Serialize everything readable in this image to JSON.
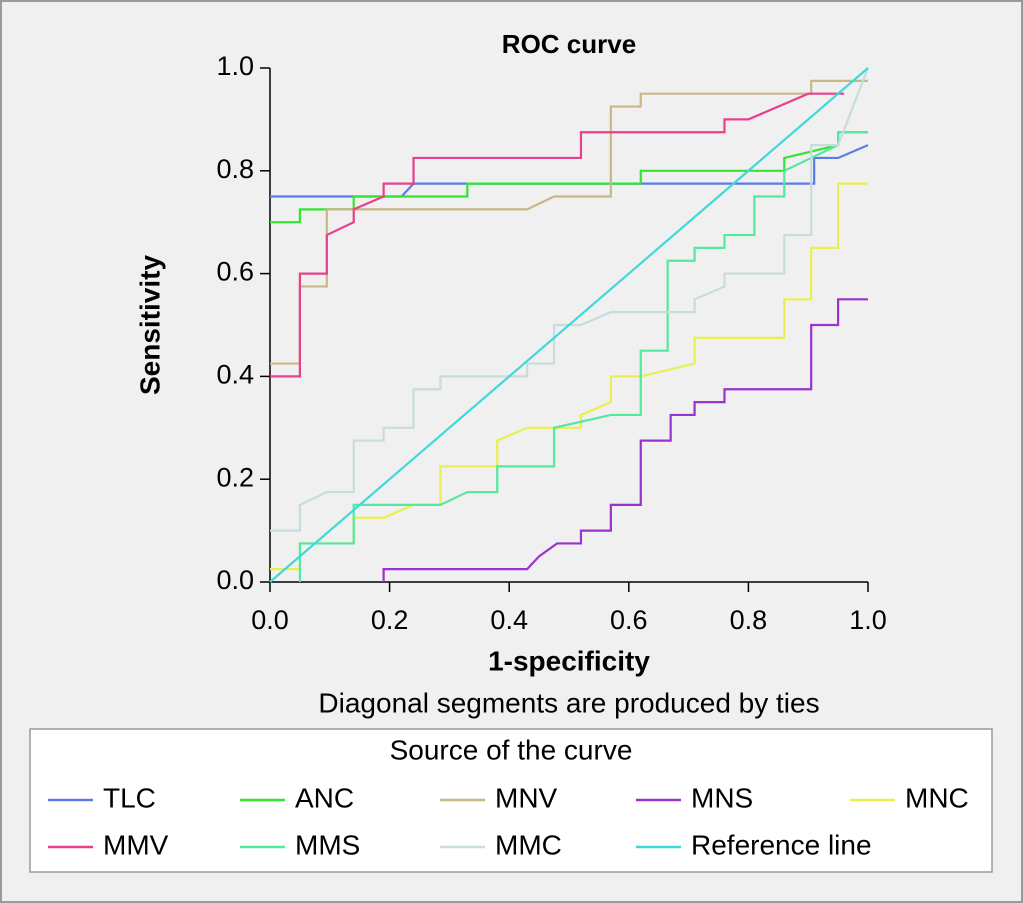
{
  "chart_data": {
    "type": "line",
    "title": "ROC curve",
    "xlabel": "1-specificity",
    "ylabel": "Sensitivity",
    "note": "Diagonal segments are produced by ties",
    "legend_title": "Source of the curve",
    "xlim": [
      0,
      1
    ],
    "ylim": [
      0,
      1
    ],
    "xticks": [
      {
        "value": 0,
        "label": "0.0"
      },
      {
        "value": 0.2,
        "label": "0.2"
      },
      {
        "value": 0.4,
        "label": "0.4"
      },
      {
        "value": 0.6,
        "label": "0.6"
      },
      {
        "value": 0.8,
        "label": "0.8"
      },
      {
        "value": 1,
        "label": "1.0"
      }
    ],
    "yticks": [
      {
        "value": 0,
        "label": "0.0"
      },
      {
        "value": 0.2,
        "label": "0.2"
      },
      {
        "value": 0.4,
        "label": "0.4"
      },
      {
        "value": 0.6,
        "label": "0.6"
      },
      {
        "value": 0.8,
        "label": "0.8"
      },
      {
        "value": 1,
        "label": "1.0"
      }
    ],
    "series": [
      {
        "name": "TLC",
        "color": "#5b7be8",
        "x": [
          0,
          0.22,
          0.24,
          0.91,
          0.91,
          0.95,
          1
        ],
        "values": [
          0.75,
          0.75,
          0.775,
          0.775,
          0.825,
          0.825,
          0.85
        ]
      },
      {
        "name": "ANC",
        "color": "#33e533",
        "x": [
          0,
          0.05,
          0.05,
          0.14,
          0.14,
          0.33,
          0.33,
          0.62,
          0.62,
          0.86,
          0.86,
          0.95,
          0.95,
          1
        ],
        "values": [
          0.7,
          0.7,
          0.725,
          0.725,
          0.75,
          0.75,
          0.775,
          0.775,
          0.8,
          0.8,
          0.825,
          0.85,
          0.875,
          0.875
        ]
      },
      {
        "name": "MNV",
        "color": "#c8b888",
        "x": [
          0,
          0.05,
          0.05,
          0.095,
          0.095,
          0.43,
          0.475,
          0.57,
          0.57,
          0.62,
          0.62,
          0.905,
          0.905,
          1
        ],
        "values": [
          0.425,
          0.425,
          0.575,
          0.575,
          0.725,
          0.725,
          0.75,
          0.75,
          0.925,
          0.925,
          0.95,
          0.95,
          0.975,
          0.975
        ]
      },
      {
        "name": "MNS",
        "color": "#9933cc",
        "x": [
          0.19,
          0.19,
          0.43,
          0.45,
          0.48,
          0.52,
          0.52,
          0.57,
          0.57,
          0.62,
          0.62,
          0.67,
          0.67,
          0.71,
          0.71,
          0.76,
          0.76,
          0.905,
          0.905,
          0.95,
          0.95,
          1
        ],
        "values": [
          0,
          0.025,
          0.025,
          0.05,
          0.075,
          0.075,
          0.1,
          0.1,
          0.15,
          0.15,
          0.275,
          0.275,
          0.325,
          0.325,
          0.35,
          0.35,
          0.375,
          0.375,
          0.5,
          0.5,
          0.55,
          0.55
        ]
      },
      {
        "name": "MNC",
        "color": "#e8f050",
        "x": [
          0,
          0.05,
          0.05,
          0.14,
          0.14,
          0.19,
          0.24,
          0.285,
          0.285,
          0.38,
          0.38,
          0.43,
          0.52,
          0.52,
          0.57,
          0.57,
          0.62,
          0.71,
          0.71,
          0.86,
          0.86,
          0.905,
          0.905,
          0.95,
          0.95,
          1
        ],
        "values": [
          0.025,
          0.025,
          0.075,
          0.075,
          0.125,
          0.125,
          0.15,
          0.15,
          0.225,
          0.225,
          0.275,
          0.3,
          0.3,
          0.325,
          0.35,
          0.4,
          0.4,
          0.425,
          0.475,
          0.475,
          0.55,
          0.55,
          0.65,
          0.65,
          0.775,
          0.775
        ]
      },
      {
        "name": "MMV",
        "color": "#e8408a",
        "x": [
          0,
          0.05,
          0.05,
          0.095,
          0.095,
          0.14,
          0.14,
          0.19,
          0.19,
          0.24,
          0.24,
          0.52,
          0.52,
          0.76,
          0.76,
          0.8,
          0.9,
          0.96
        ],
        "values": [
          0.4,
          0.4,
          0.6,
          0.6,
          0.675,
          0.7,
          0.725,
          0.75,
          0.775,
          0.775,
          0.825,
          0.825,
          0.875,
          0.875,
          0.9,
          0.9,
          0.95,
          0.95
        ]
      },
      {
        "name": "MMS",
        "color": "#55e8a0",
        "x": [
          0.05,
          0.05,
          0.14,
          0.14,
          0.285,
          0.33,
          0.38,
          0.38,
          0.475,
          0.475,
          0.57,
          0.62,
          0.62,
          0.665,
          0.665,
          0.71,
          0.71,
          0.76,
          0.76,
          0.81,
          0.81,
          0.86,
          0.86,
          0.95,
          0.95,
          1
        ],
        "values": [
          0,
          0.075,
          0.075,
          0.15,
          0.15,
          0.175,
          0.175,
          0.225,
          0.225,
          0.3,
          0.325,
          0.325,
          0.45,
          0.45,
          0.625,
          0.625,
          0.65,
          0.65,
          0.675,
          0.675,
          0.75,
          0.75,
          0.8,
          0.85,
          0.875,
          0.875
        ]
      },
      {
        "name": "MMC",
        "color": "#c8dcdc",
        "x": [
          0,
          0.05,
          0.05,
          0.095,
          0.14,
          0.14,
          0.19,
          0.19,
          0.24,
          0.24,
          0.285,
          0.285,
          0.43,
          0.43,
          0.475,
          0.475,
          0.52,
          0.57,
          0.71,
          0.71,
          0.76,
          0.76,
          0.86,
          0.86,
          0.905,
          0.905,
          0.95,
          1
        ],
        "values": [
          0.1,
          0.1,
          0.15,
          0.175,
          0.175,
          0.275,
          0.275,
          0.3,
          0.3,
          0.375,
          0.375,
          0.4,
          0.4,
          0.425,
          0.425,
          0.5,
          0.5,
          0.525,
          0.525,
          0.55,
          0.575,
          0.6,
          0.6,
          0.675,
          0.675,
          0.85,
          0.85,
          1
        ]
      },
      {
        "name": "Reference line",
        "color": "#40d8d8",
        "x": [
          0,
          1
        ],
        "values": [
          0,
          1
        ]
      }
    ]
  }
}
